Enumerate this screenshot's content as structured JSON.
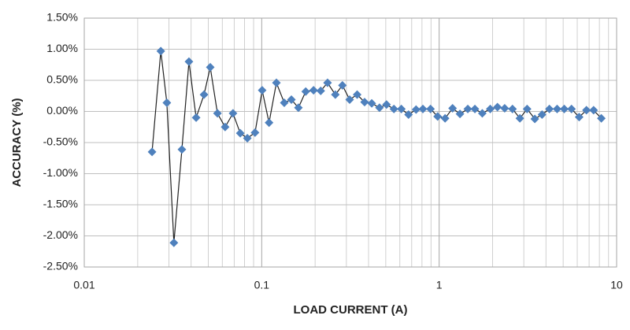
{
  "chart_data": {
    "type": "line",
    "x_label": "LOAD CURRENT (A)",
    "y_label": "ACCURACY (%)",
    "xscale": "log",
    "grid": true,
    "xlim": [
      0.01,
      10
    ],
    "xticks": [
      0.01,
      0.1,
      1,
      10
    ],
    "ylim": [
      -2.5,
      1.5
    ],
    "yticks": [
      {
        "value": -2.5,
        "label": "-2.50%"
      },
      {
        "value": -2.0,
        "label": "-2.00%"
      },
      {
        "value": -1.5,
        "label": "-1.50%"
      },
      {
        "value": -1.0,
        "label": "-1.00%"
      },
      {
        "value": -0.5,
        "label": "-0.50%"
      },
      {
        "value": 0,
        "label": "0.00%"
      },
      {
        "value": 0.5,
        "label": "0.50%"
      },
      {
        "value": 1.0,
        "label": "1.00%"
      },
      {
        "value": 1.5,
        "label": "1.50%"
      }
    ],
    "x": [
      0.0241,
      0.027,
      0.0292,
      0.032,
      0.0355,
      0.0389,
      0.0427,
      0.0473,
      0.0513,
      0.0563,
      0.0622,
      0.0689,
      0.0757,
      0.083,
      0.0917,
      0.1006,
      0.11,
      0.121,
      0.134,
      0.147,
      0.161,
      0.177,
      0.196,
      0.215,
      0.235,
      0.26,
      0.285,
      0.313,
      0.345,
      0.38,
      0.417,
      0.461,
      0.505,
      0.556,
      0.612,
      0.672,
      0.741,
      0.81,
      0.894,
      0.98,
      1.08,
      1.19,
      1.31,
      1.45,
      1.59,
      1.75,
      1.94,
      2.13,
      2.34,
      2.59,
      2.85,
      3.13,
      3.46,
      3.8,
      4.18,
      4.62,
      5.07,
      5.57,
      6.15,
      6.76,
      7.42,
      8.2
    ],
    "series": [
      {
        "color": "#4f81bd",
        "values": [
          -0.65,
          0.97,
          0.14,
          -2.11,
          -0.61,
          0.8,
          -0.1,
          0.27,
          0.71,
          -0.03,
          -0.25,
          -0.03,
          -0.35,
          -0.43,
          -0.34,
          0.34,
          -0.18,
          0.46,
          0.14,
          0.19,
          0.06,
          0.32,
          0.34,
          0.33,
          0.46,
          0.27,
          0.42,
          0.19,
          0.27,
          0.15,
          0.13,
          0.06,
          0.11,
          0.04,
          0.04,
          -0.05,
          0.03,
          0.04,
          0.04,
          -0.08,
          -0.11,
          0.05,
          -0.04,
          0.04,
          0.04,
          -0.03,
          0.04,
          0.07,
          0.05,
          0.04,
          -0.11,
          0.04,
          -0.12,
          -0.05,
          0.04,
          0.04,
          0.04,
          0.04,
          -0.09,
          0.02,
          0.02,
          -0.11
        ]
      }
    ]
  }
}
